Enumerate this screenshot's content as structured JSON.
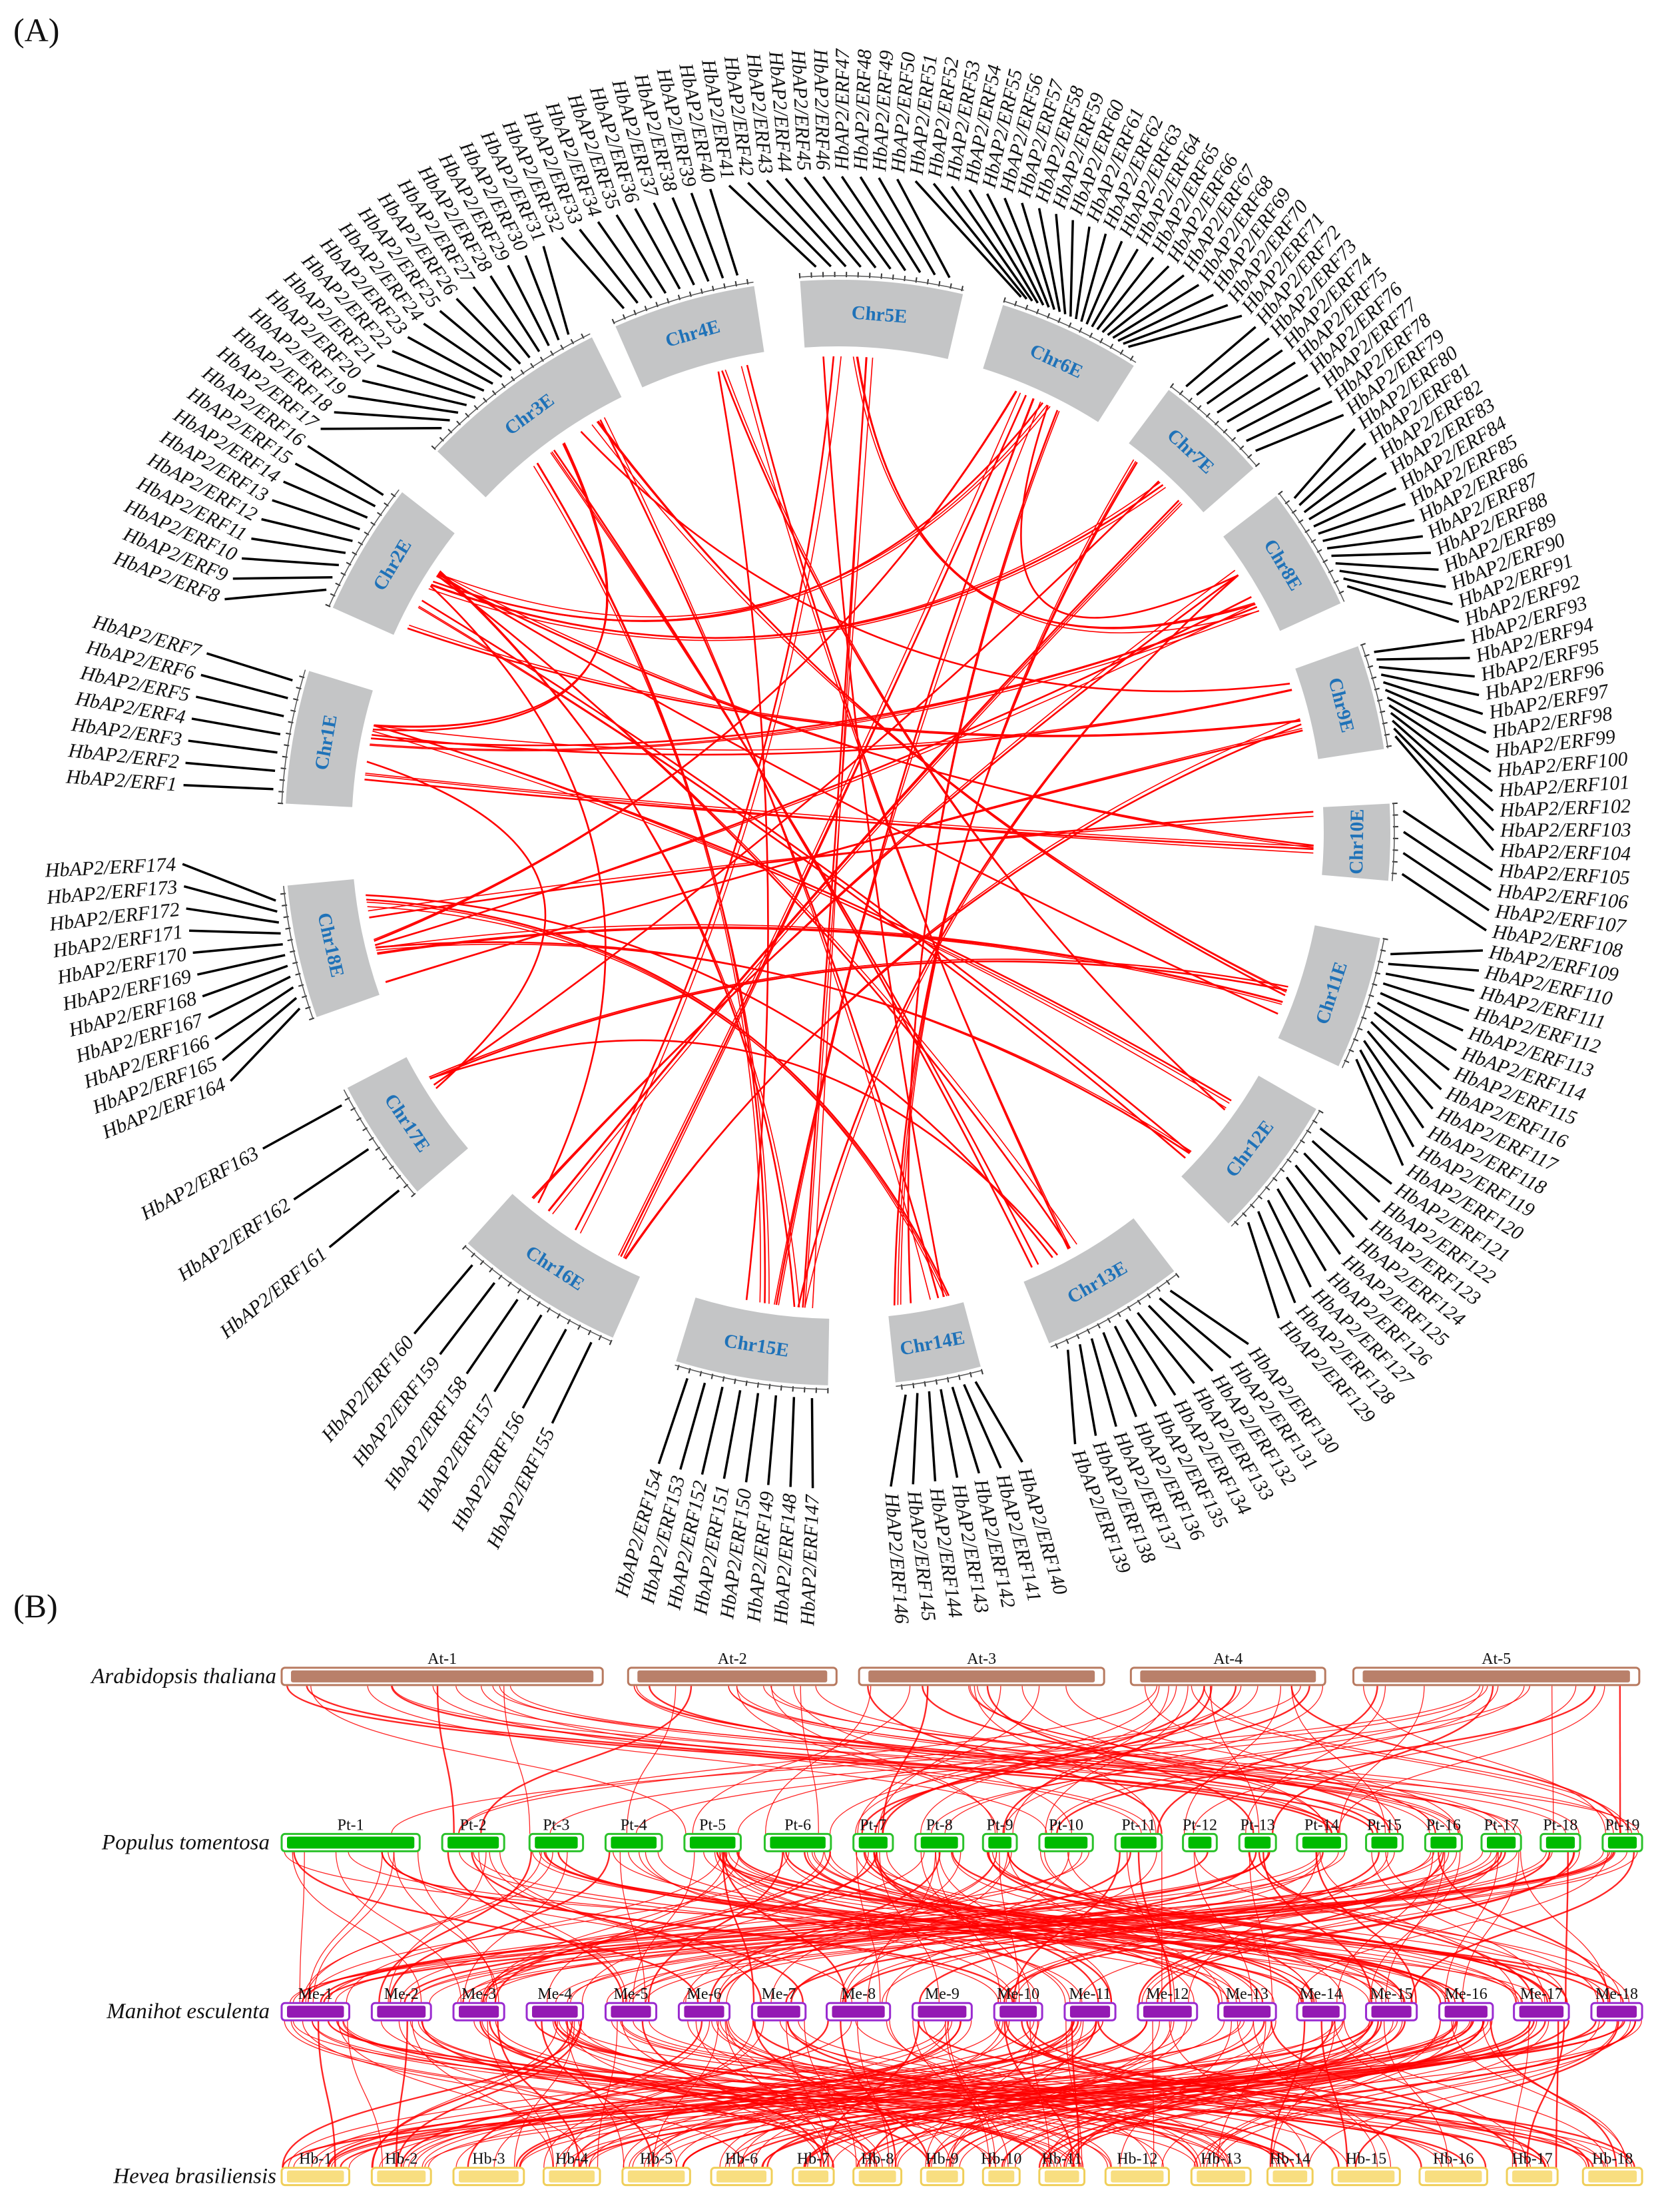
{
  "panel_a": {
    "label": "(A)",
    "colors": {
      "chromosome": "#c4c5c6",
      "chromosome_label": "#1f72b8",
      "link": "#ff0000",
      "gene_line": "#000000"
    },
    "chromosomes": [
      {
        "name": "Chr1E",
        "genes": [
          "HbAP2/ERF1",
          "HbAP2/ERF2",
          "HbAP2/ERF3",
          "HbAP2/ERF4",
          "HbAP2/ERF5",
          "HbAP2/ERF6",
          "HbAP2/ERF7"
        ]
      },
      {
        "name": "Chr2E",
        "genes": [
          "HbAP2/ERF8",
          "HbAP2/ERF9",
          "HbAP2/ERF10",
          "HbAP2/ERF11",
          "HbAP2/ERF12",
          "HbAP2/ERF13",
          "HbAP2/ERF14",
          "HbAP2/ERF15",
          "HbAP2/ERF16"
        ]
      },
      {
        "name": "Chr3E",
        "genes": [
          "HbAP2/ERF17",
          "HbAP2/ERF18",
          "HbAP2/ERF19",
          "HbAP2/ERF20",
          "HbAP2/ERF21",
          "HbAP2/ERF22",
          "HbAP2/ERF23",
          "HbAP2/ERF24",
          "HbAP2/ERF25",
          "HbAP2/ERF26",
          "HbAP2/ERF27",
          "HbAP2/ERF28",
          "HbAP2/ERF29",
          "HbAP2/ERF30",
          "HbAP2/ERF31"
        ]
      },
      {
        "name": "Chr4E",
        "genes": [
          "HbAP2/ERF32",
          "HbAP2/ERF33",
          "HbAP2/ERF34",
          "HbAP2/ERF35",
          "HbAP2/ERF36",
          "HbAP2/ERF37",
          "HbAP2/ERF38",
          "HbAP2/ERF39",
          "HbAP2/ERF40"
        ]
      },
      {
        "name": "Chr5E",
        "genes": [
          "HbAP2/ERF41",
          "HbAP2/ERF42",
          "HbAP2/ERF43",
          "HbAP2/ERF44",
          "HbAP2/ERF45",
          "HbAP2/ERF46",
          "HbAP2/ERF47",
          "HbAP2/ERF48",
          "HbAP2/ERF49",
          "HbAP2/ERF50"
        ]
      },
      {
        "name": "Chr6E",
        "genes": [
          "HbAP2/ERF51",
          "HbAP2/ERF52",
          "HbAP2/ERF53",
          "HbAP2/ERF54",
          "HbAP2/ERF55",
          "HbAP2/ERF56",
          "HbAP2/ERF57",
          "HbAP2/ERF58",
          "HbAP2/ERF59",
          "HbAP2/ERF60",
          "HbAP2/ERF61",
          "HbAP2/ERF62",
          "HbAP2/ERF63",
          "HbAP2/ERF64",
          "HbAP2/ERF65",
          "HbAP2/ERF66",
          "HbAP2/ERF67",
          "HbAP2/ERF68",
          "HbAP2/ERF69",
          "HbAP2/ERF70",
          "HbAP2/ERF71"
        ]
      },
      {
        "name": "Chr7E",
        "genes": [
          "HbAP2/ERF72",
          "HbAP2/ERF73",
          "HbAP2/ERF74",
          "HbAP2/ERF75",
          "HbAP2/ERF76",
          "HbAP2/ERF77",
          "HbAP2/ERF78",
          "HbAP2/ERF79"
        ]
      },
      {
        "name": "Chr8E",
        "genes": [
          "HbAP2/ERF80",
          "HbAP2/ERF81",
          "HbAP2/ERF82",
          "HbAP2/ERF83",
          "HbAP2/ERF84",
          "HbAP2/ERF85",
          "HbAP2/ERF86",
          "HbAP2/ERF87",
          "HbAP2/ERF88",
          "HbAP2/ERF89",
          "HbAP2/ERF90",
          "HbAP2/ERF91",
          "HbAP2/ERF92"
        ]
      },
      {
        "name": "Chr9E",
        "genes": [
          "HbAP2/ERF93",
          "HbAP2/ERF94",
          "HbAP2/ERF95",
          "HbAP2/ERF96",
          "HbAP2/ERF97",
          "HbAP2/ERF98",
          "HbAP2/ERF99",
          "HbAP2/ERF100",
          "HbAP2/ERF101",
          "HbAP2/ERF102",
          "HbAP2/ERF103",
          "HbAP2/ERF104"
        ]
      },
      {
        "name": "Chr10E",
        "genes": [
          "HbAP2/ERF105",
          "HbAP2/ERF106",
          "HbAP2/ERF107",
          "HbAP2/ERF108"
        ]
      },
      {
        "name": "Chr11E",
        "genes": [
          "HbAP2/ERF109",
          "HbAP2/ERF110",
          "HbAP2/ERF111",
          "HbAP2/ERF112",
          "HbAP2/ERF113",
          "HbAP2/ERF114",
          "HbAP2/ERF115",
          "HbAP2/ERF116",
          "HbAP2/ERF117",
          "HbAP2/ERF118",
          "HbAP2/ERF119",
          "HbAP2/ERF120"
        ]
      },
      {
        "name": "Chr12E",
        "genes": [
          "HbAP2/ERF121",
          "HbAP2/ERF122",
          "HbAP2/ERF123",
          "HbAP2/ERF124",
          "HbAP2/ERF125",
          "HbAP2/ERF126",
          "HbAP2/ERF127",
          "HbAP2/ERF128",
          "HbAP2/ERF129"
        ]
      },
      {
        "name": "Chr13E",
        "genes": [
          "HbAP2/ERF130",
          "HbAP2/ERF131",
          "HbAP2/ERF132",
          "HbAP2/ERF133",
          "HbAP2/ERF134",
          "HbAP2/ERF135",
          "HbAP2/ERF136",
          "HbAP2/ERF137",
          "HbAP2/ERF138",
          "HbAP2/ERF139"
        ]
      },
      {
        "name": "Chr14E",
        "genes": [
          "HbAP2/ERF140",
          "HbAP2/ERF141",
          "HbAP2/ERF142",
          "HbAP2/ERF143",
          "HbAP2/ERF144",
          "HbAP2/ERF145",
          "HbAP2/ERF146"
        ]
      },
      {
        "name": "Chr15E",
        "genes": [
          "HbAP2/ERF147",
          "HbAP2/ERF148",
          "HbAP2/ERF149",
          "HbAP2/ERF150",
          "HbAP2/ERF151",
          "HbAP2/ERF152",
          "HbAP2/ERF153",
          "HbAP2/ERF154"
        ]
      },
      {
        "name": "Chr16E",
        "genes": [
          "HbAP2/ERF155",
          "HbAP2/ERF156",
          "HbAP2/ERF157",
          "HbAP2/ERF158",
          "HbAP2/ERF159",
          "HbAP2/ERF160"
        ]
      },
      {
        "name": "Chr17E",
        "genes": [
          "HbAP2/ERF161",
          "HbAP2/ERF162",
          "HbAP2/ERF163"
        ]
      },
      {
        "name": "Chr18E",
        "genes": [
          "HbAP2/ERF164",
          "HbAP2/ERF165",
          "HbAP2/ERF166",
          "HbAP2/ERF167",
          "HbAP2/ERF168",
          "HbAP2/ERF169",
          "HbAP2/ERF170",
          "HbAP2/ERF171",
          "HbAP2/ERF172",
          "HbAP2/ERF173",
          "HbAP2/ERF174"
        ]
      }
    ],
    "links": [
      [
        "Chr3E",
        "Chr15E"
      ],
      [
        "Chr3E",
        "Chr13E"
      ],
      [
        "Chr3E",
        "Chr11E"
      ],
      [
        "Chr3E",
        "Chr9E"
      ],
      [
        "Chr3E",
        "Chr14E"
      ],
      [
        "Chr4E",
        "Chr15E"
      ],
      [
        "Chr4E",
        "Chr13E"
      ],
      [
        "Chr4E",
        "Chr12E"
      ],
      [
        "Chr5E",
        "Chr14E"
      ],
      [
        "Chr5E",
        "Chr15E"
      ],
      [
        "Chr5E",
        "Chr16E"
      ],
      [
        "Chr5E",
        "Chr8E"
      ],
      [
        "Chr6E",
        "Chr14E"
      ],
      [
        "Chr6E",
        "Chr15E"
      ],
      [
        "Chr6E",
        "Chr18E"
      ],
      [
        "Chr6E",
        "Chr2E"
      ],
      [
        "Chr6E",
        "Chr16E"
      ],
      [
        "Chr6E",
        "Chr8E"
      ],
      [
        "Chr7E",
        "Chr16E"
      ],
      [
        "Chr7E",
        "Chr14E"
      ],
      [
        "Chr7E",
        "Chr17E"
      ],
      [
        "Chr7E",
        "Chr2E"
      ],
      [
        "Chr8E",
        "Chr18E"
      ],
      [
        "Chr8E",
        "Chr1E"
      ],
      [
        "Chr8E",
        "Chr16E"
      ],
      [
        "Chr8E",
        "Chr15E"
      ],
      [
        "Chr9E",
        "Chr2E"
      ],
      [
        "Chr9E",
        "Chr18E"
      ],
      [
        "Chr9E",
        "Chr1E"
      ],
      [
        "Chr9E",
        "Chr16E"
      ],
      [
        "Chr10E",
        "Chr18E"
      ],
      [
        "Chr10E",
        "Chr1E"
      ],
      [
        "Chr10E",
        "Chr2E"
      ],
      [
        "Chr11E",
        "Chr18E"
      ],
      [
        "Chr11E",
        "Chr2E"
      ],
      [
        "Chr11E",
        "Chr17E"
      ],
      [
        "Chr12E",
        "Chr2E"
      ],
      [
        "Chr12E",
        "Chr18E"
      ],
      [
        "Chr12E",
        "Chr1E"
      ],
      [
        "Chr13E",
        "Chr2E"
      ],
      [
        "Chr13E",
        "Chr18E"
      ],
      [
        "Chr13E",
        "Chr17E"
      ],
      [
        "Chr14E",
        "Chr18E"
      ],
      [
        "Chr15E",
        "Chr2E"
      ],
      [
        "Chr16E",
        "Chr2E"
      ],
      [
        "Chr17E",
        "Chr1E"
      ],
      [
        "Chr1E",
        "Chr3E"
      ]
    ]
  },
  "panel_b": {
    "label": "(B)",
    "link_color": "#ff0000",
    "species": [
      {
        "name": "Arabidopsis thaliana",
        "color": "#b9806a",
        "chromosomes": [
          "At-1",
          "At-2",
          "At-3",
          "At-4",
          "At-5"
        ]
      },
      {
        "name": "Populus tomentosa",
        "color": "#00bb00",
        "chromosomes": [
          "Pt-1",
          "Pt-2",
          "Pt-3",
          "Pt-4",
          "Pt-5",
          "Pt-6",
          "Pt-7",
          "Pt-8",
          "Pt-9",
          "Pt-10",
          "Pt-11",
          "Pt-12",
          "Pt-13",
          "Pt-14",
          "Pt-15",
          "Pt-16",
          "Pt-17",
          "Pt-18",
          "Pt-19"
        ]
      },
      {
        "name": "Manihot esculenta",
        "color": "#9419b3",
        "chromosomes": [
          "Me-1",
          "Me-2",
          "Me-3",
          "Me-4",
          "Me-5",
          "Me-6",
          "Me-7",
          "Me-8",
          "Me-9",
          "Me-10",
          "Me-11",
          "Me-12",
          "Me-13",
          "Me-14",
          "Me-15",
          "Me-16",
          "Me-17",
          "Me-18"
        ]
      },
      {
        "name": "Hevea brasiliensis",
        "color": "#f8de80",
        "chromosomes": [
          "Hb-1",
          "Hb-2",
          "Hb-3",
          "Hb-4",
          "Hb-5",
          "Hb-6",
          "Hb-7",
          "Hb-8",
          "Hb-9",
          "Hb-10",
          "Hb-11",
          "Hb-12",
          "Hb-13",
          "Hb-14",
          "Hb-15",
          "Hb-16",
          "Hb-17",
          "Hb-18"
        ]
      }
    ]
  }
}
